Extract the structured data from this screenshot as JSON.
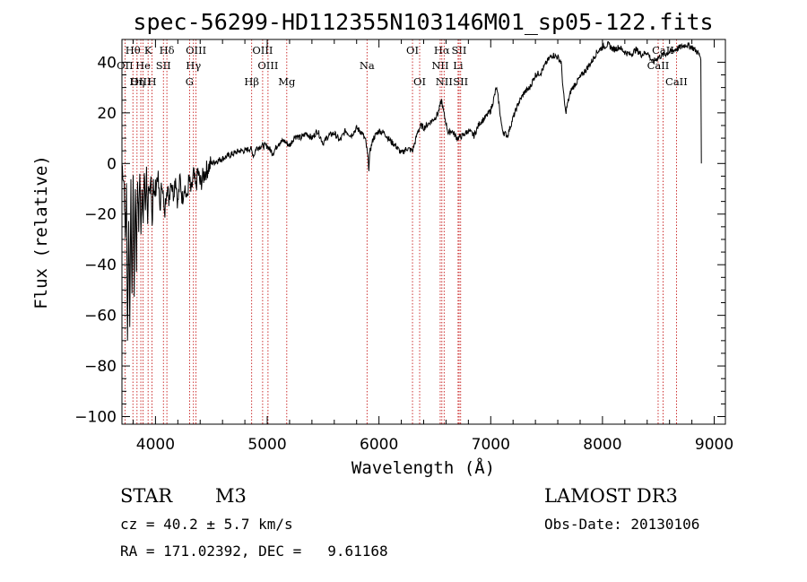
{
  "chart_data": {
    "type": "line",
    "title": "spec-56299-HD112355N103146M01_sp05-122.fits",
    "xlabel": "Wavelength (Å)",
    "ylabel": "Flux (relative)",
    "xlim": [
      3700,
      9100
    ],
    "ylim": [
      -103,
      49
    ],
    "xticks": [
      4000,
      5000,
      6000,
      7000,
      8000,
      9000
    ],
    "yticks": [
      -100,
      -80,
      -60,
      -40,
      -20,
      0,
      20,
      40
    ],
    "spectrum": [
      [
        3700,
        0
      ],
      [
        3720,
        -8
      ],
      [
        3730,
        -30
      ],
      [
        3740,
        -10
      ],
      [
        3750,
        -70
      ],
      [
        3760,
        -20
      ],
      [
        3770,
        -62
      ],
      [
        3780,
        -10
      ],
      [
        3790,
        -55
      ],
      [
        3800,
        -5
      ],
      [
        3810,
        -50
      ],
      [
        3820,
        -8
      ],
      [
        3830,
        -40
      ],
      [
        3840,
        -6
      ],
      [
        3850,
        -25
      ],
      [
        3860,
        -2
      ],
      [
        3870,
        -30
      ],
      [
        3880,
        -8
      ],
      [
        3890,
        -20
      ],
      [
        3900,
        -5
      ],
      [
        3910,
        -18
      ],
      [
        3920,
        -4
      ],
      [
        3930,
        -22
      ],
      [
        3940,
        -6
      ],
      [
        3950,
        -15
      ],
      [
        3960,
        -8
      ],
      [
        3970,
        -25
      ],
      [
        3980,
        -5
      ],
      [
        3990,
        -14
      ],
      [
        4000,
        -10
      ],
      [
        4020,
        -4
      ],
      [
        4040,
        -18
      ],
      [
        4060,
        -6
      ],
      [
        4080,
        -22
      ],
      [
        4100,
        -8
      ],
      [
        4120,
        -14
      ],
      [
        4140,
        -6
      ],
      [
        4160,
        -12
      ],
      [
        4180,
        -5
      ],
      [
        4200,
        -16
      ],
      [
        4220,
        -6
      ],
      [
        4240,
        -14
      ],
      [
        4260,
        -8
      ],
      [
        4280,
        -15
      ],
      [
        4300,
        -6
      ],
      [
        4320,
        -12
      ],
      [
        4340,
        -4
      ],
      [
        4360,
        -10
      ],
      [
        4380,
        -3
      ],
      [
        4400,
        -8
      ],
      [
        4450,
        -3
      ],
      [
        4500,
        0
      ],
      [
        4550,
        1
      ],
      [
        4600,
        2
      ],
      [
        4650,
        3
      ],
      [
        4700,
        4
      ],
      [
        4750,
        5
      ],
      [
        4800,
        5
      ],
      [
        4850,
        6
      ],
      [
        4880,
        3
      ],
      [
        4900,
        6
      ],
      [
        4950,
        7
      ],
      [
        5000,
        7
      ],
      [
        5050,
        4
      ],
      [
        5100,
        8
      ],
      [
        5150,
        9
      ],
      [
        5200,
        7
      ],
      [
        5250,
        11
      ],
      [
        5300,
        10
      ],
      [
        5350,
        12
      ],
      [
        5400,
        10
      ],
      [
        5450,
        13
      ],
      [
        5500,
        8
      ],
      [
        5550,
        11
      ],
      [
        5600,
        12
      ],
      [
        5650,
        9
      ],
      [
        5700,
        13
      ],
      [
        5750,
        11
      ],
      [
        5800,
        14
      ],
      [
        5850,
        12
      ],
      [
        5880,
        9
      ],
      [
        5900,
        3
      ],
      [
        5910,
        -2
      ],
      [
        5920,
        5
      ],
      [
        5950,
        10
      ],
      [
        6000,
        13
      ],
      [
        6050,
        12
      ],
      [
        6100,
        9
      ],
      [
        6150,
        7
      ],
      [
        6200,
        4
      ],
      [
        6250,
        6
      ],
      [
        6300,
        5
      ],
      [
        6320,
        8
      ],
      [
        6350,
        13
      ],
      [
        6380,
        15
      ],
      [
        6400,
        14
      ],
      [
        6450,
        16
      ],
      [
        6500,
        18
      ],
      [
        6530,
        20
      ],
      [
        6560,
        25
      ],
      [
        6580,
        20
      ],
      [
        6600,
        16
      ],
      [
        6620,
        12
      ],
      [
        6650,
        13
      ],
      [
        6700,
        10
      ],
      [
        6750,
        11
      ],
      [
        6800,
        13
      ],
      [
        6850,
        11
      ],
      [
        6900,
        16
      ],
      [
        6950,
        18
      ],
      [
        7000,
        21
      ],
      [
        7030,
        26
      ],
      [
        7050,
        30
      ],
      [
        7070,
        25
      ],
      [
        7100,
        14
      ],
      [
        7120,
        12
      ],
      [
        7150,
        11
      ],
      [
        7200,
        18
      ],
      [
        7250,
        24
      ],
      [
        7300,
        28
      ],
      [
        7350,
        30
      ],
      [
        7400,
        35
      ],
      [
        7450,
        36
      ],
      [
        7500,
        40
      ],
      [
        7550,
        43
      ],
      [
        7600,
        42
      ],
      [
        7630,
        40
      ],
      [
        7650,
        28
      ],
      [
        7670,
        20
      ],
      [
        7690,
        24
      ],
      [
        7720,
        29
      ],
      [
        7750,
        31
      ],
      [
        7800,
        34
      ],
      [
        7850,
        37
      ],
      [
        7900,
        40
      ],
      [
        7950,
        44
      ],
      [
        8000,
        46
      ],
      [
        8050,
        47
      ],
      [
        8100,
        45
      ],
      [
        8150,
        46
      ],
      [
        8200,
        44
      ],
      [
        8250,
        43
      ],
      [
        8300,
        45
      ],
      [
        8350,
        43
      ],
      [
        8400,
        44
      ],
      [
        8450,
        40
      ],
      [
        8500,
        42
      ],
      [
        8550,
        43
      ],
      [
        8600,
        44
      ],
      [
        8650,
        45
      ],
      [
        8700,
        46
      ],
      [
        8750,
        47
      ],
      [
        8800,
        46
      ],
      [
        8850,
        44
      ],
      [
        8880,
        42
      ],
      [
        8885,
        0
      ]
    ],
    "lines": [
      {
        "label": "Hθ",
        "wl": 3798,
        "row": 0
      },
      {
        "label": "OII",
        "wl": 3727,
        "row": 1
      },
      {
        "label": "OIII",
        "wl": 3869,
        "row": 2
      },
      {
        "label": "K",
        "wl": 3934,
        "row": 0
      },
      {
        "label": "He",
        "wl": 3889,
        "row": 1
      },
      {
        "label": "Hη",
        "wl": 3835,
        "row": 2
      },
      {
        "label": "SII",
        "wl": 4071,
        "row": 1
      },
      {
        "label": "H",
        "wl": 3969,
        "row": 2
      },
      {
        "label": "Hδ",
        "wl": 4102,
        "row": 0
      },
      {
        "label": "OIII",
        "wl": 4363,
        "row": 0
      },
      {
        "label": "Hγ",
        "wl": 4340,
        "row": 1
      },
      {
        "label": "G",
        "wl": 4305,
        "row": 2
      },
      {
        "label": "Hβ",
        "wl": 4861,
        "row": 2
      },
      {
        "label": "OIII",
        "wl": 4959,
        "row": 0
      },
      {
        "label": "OIII",
        "wl": 5007,
        "row": 1
      },
      {
        "label": "Mg",
        "wl": 5175,
        "row": 2
      },
      {
        "label": "Na",
        "wl": 5893,
        "row": 1
      },
      {
        "label": "OI",
        "wl": 6300,
        "row": 0
      },
      {
        "label": "OI",
        "wl": 6364,
        "row": 2
      },
      {
        "label": "Hα",
        "wl": 6563,
        "row": 0
      },
      {
        "label": "NII",
        "wl": 6548,
        "row": 1
      },
      {
        "label": "NII",
        "wl": 6583,
        "row": 2
      },
      {
        "label": "SII",
        "wl": 6717,
        "row": 0
      },
      {
        "label": "Li",
        "wl": 6708,
        "row": 1
      },
      {
        "label": "SII",
        "wl": 6731,
        "row": 2
      },
      {
        "label": "CaII",
        "wl": 8542,
        "row": 0
      },
      {
        "label": "CaII",
        "wl": 8498,
        "row": 1
      },
      {
        "label": "CaII",
        "wl": 8662,
        "row": 2
      }
    ]
  },
  "info": {
    "class": "STAR",
    "subclass": "M3",
    "survey": "LAMOST DR3",
    "cz": "cz = 40.2 ± 5.7 km/s",
    "obsdate": "Obs-Date: 20130106",
    "radec": "RA = 171.02392, DEC =   9.61168"
  }
}
